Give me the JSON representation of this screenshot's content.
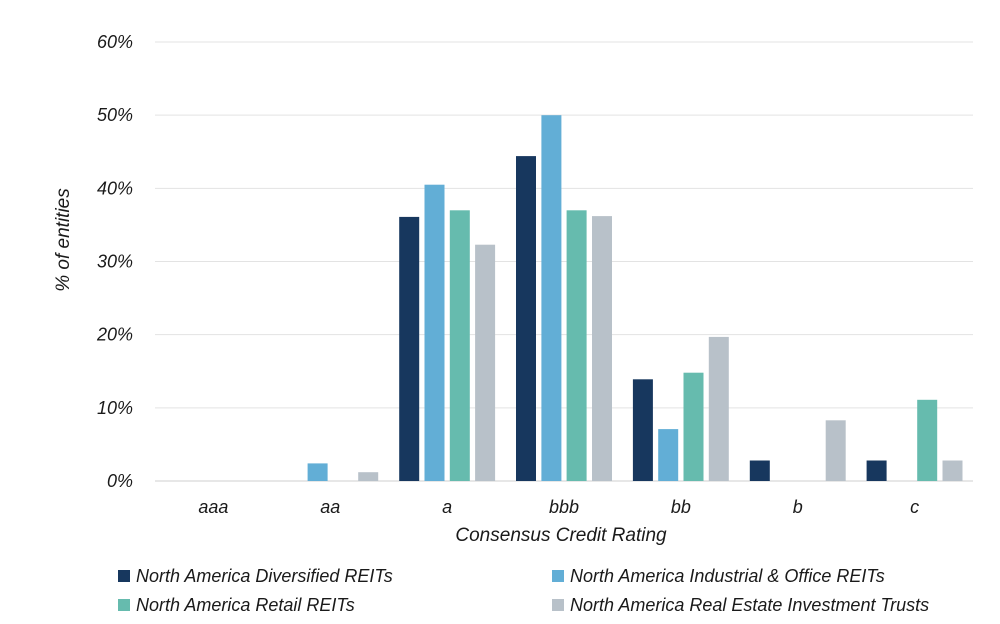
{
  "chart_data": {
    "type": "bar",
    "title": "",
    "xlabel": "Consensus Credit Rating",
    "ylabel": "% of entities",
    "categories": [
      "aaa",
      "aa",
      "a",
      "bbb",
      "bb",
      "b",
      "c"
    ],
    "ylim": [
      0,
      60
    ],
    "yticks": [
      0,
      10,
      20,
      30,
      40,
      50,
      60
    ],
    "ytick_labels": [
      "0%",
      "10%",
      "20%",
      "30%",
      "40%",
      "50%",
      "60%"
    ],
    "grid": "horizontal",
    "legend_position": "bottom",
    "series": [
      {
        "name": "North America Diversified REITs",
        "color": "#17375e",
        "values": [
          0,
          0,
          36.1,
          44.4,
          13.9,
          2.8,
          2.8
        ]
      },
      {
        "name": "North America Industrial & Office REITs",
        "color": "#62aed6",
        "values": [
          0,
          2.4,
          40.5,
          50.0,
          7.1,
          0,
          0
        ]
      },
      {
        "name": "North America Retail REITs",
        "color": "#66bbae",
        "values": [
          0,
          0,
          37.0,
          37.0,
          14.8,
          0,
          11.1
        ]
      },
      {
        "name": "North America Real Estate Investment Trusts",
        "color": "#b8c1c9",
        "values": [
          0,
          1.2,
          32.3,
          36.2,
          19.7,
          8.3,
          2.8
        ]
      }
    ]
  }
}
